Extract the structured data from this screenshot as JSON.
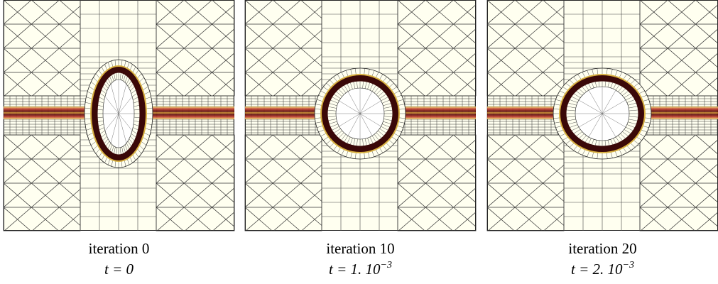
{
  "panels": [
    {
      "caption": "iteration 0",
      "time": {
        "base": "t = 0"
      }
    },
    {
      "caption": "iteration 10",
      "time": {
        "base": "t = 1. 10",
        "sup": "−3"
      }
    },
    {
      "caption": "iteration 20",
      "time": {
        "base": "t = 2. 10",
        "sup": "−3"
      }
    }
  ]
}
